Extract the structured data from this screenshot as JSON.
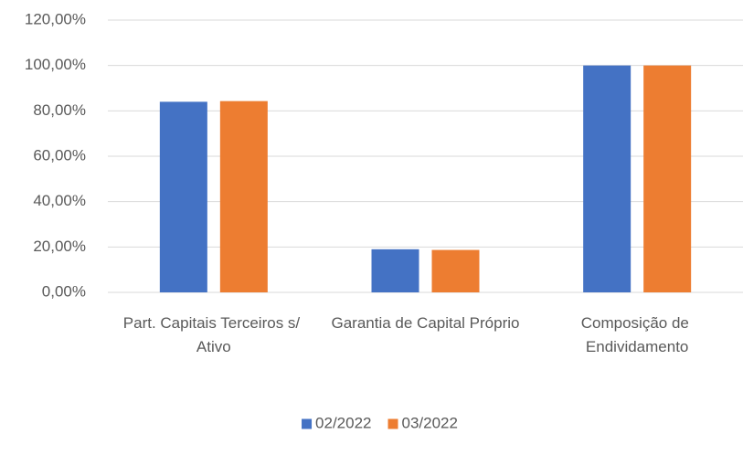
{
  "chart_data": {
    "type": "bar",
    "categories": [
      "Part. Capitais Terceiros s/ Ativo",
      "Garantia de Capital Próprio",
      "Composição de Endividamento"
    ],
    "series": [
      {
        "name": "02/2022",
        "color": "#4472c4",
        "values": [
          84,
          19,
          100
        ]
      },
      {
        "name": "03/2022",
        "color": "#ed7d31",
        "values": [
          84.3,
          18.7,
          100
        ]
      }
    ],
    "ylim": [
      0,
      120
    ],
    "yticks": [
      {
        "value": 0,
        "label": "0,00%"
      },
      {
        "value": 20,
        "label": "20,00%"
      },
      {
        "value": 40,
        "label": "40,00%"
      },
      {
        "value": 60,
        "label": "60,00%"
      },
      {
        "value": 80,
        "label": "80,00%"
      },
      {
        "value": 100,
        "label": "100,00%"
      },
      {
        "value": 120,
        "label": "120,00%"
      }
    ],
    "grid": true,
    "legend": "bottom"
  }
}
